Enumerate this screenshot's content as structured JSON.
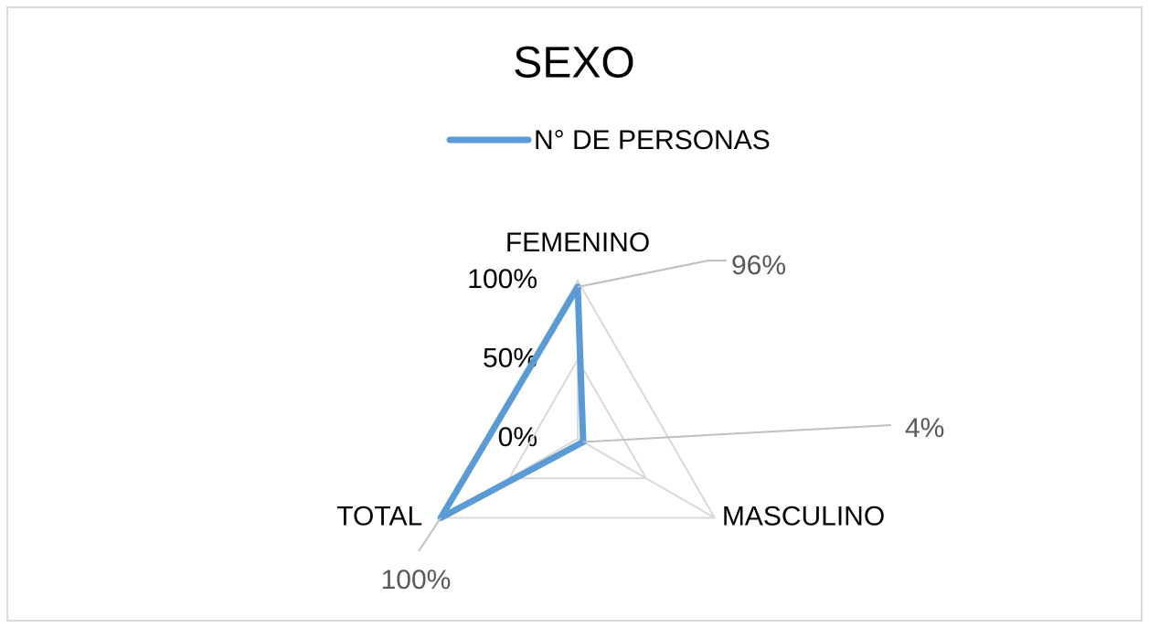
{
  "chart_data": {
    "type": "radar",
    "title": "SEXO",
    "categories": [
      "FEMENINO",
      "MASCULINO",
      "TOTAL"
    ],
    "series": [
      {
        "name": "N° DE PERSONAS",
        "color": "#5b9bd5",
        "values": [
          96,
          4,
          100
        ],
        "value_labels": [
          "96%",
          "4%",
          "100%"
        ]
      }
    ],
    "ylim": [
      0,
      100
    ],
    "yticks": [
      {
        "value": 0,
        "label": "0%"
      },
      {
        "value": 50,
        "label": "50%"
      },
      {
        "value": 100,
        "label": "100%"
      }
    ],
    "grid": true,
    "legend": "top"
  }
}
